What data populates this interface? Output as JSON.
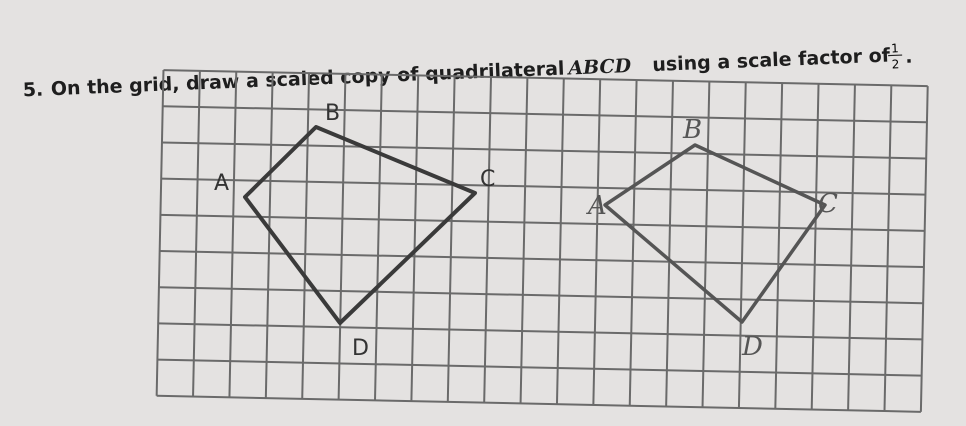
{
  "question": {
    "number": "5.",
    "text": "On the grid, draw a scaled copy of quadrilateral",
    "name": "ABCD",
    "text2": "using a scale factor of",
    "fraction": {
      "numerator": "1",
      "denominator": "2"
    },
    "end": "."
  },
  "figure": {
    "labels": [
      "A",
      "B",
      "C",
      "D"
    ]
  },
  "drawing": {
    "labels": [
      "A",
      "B",
      "C",
      "D"
    ]
  }
}
